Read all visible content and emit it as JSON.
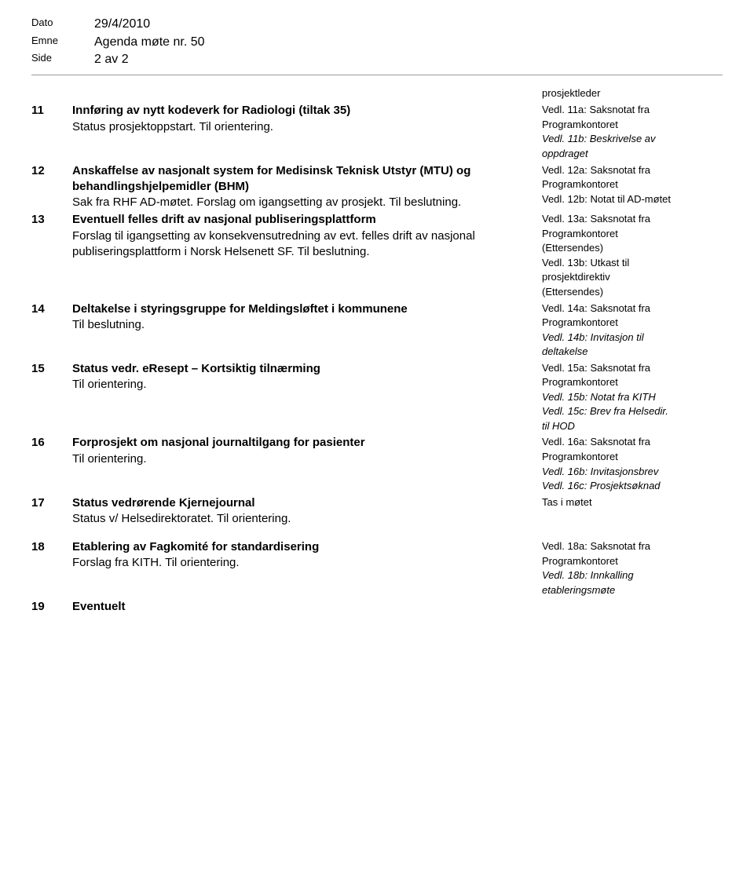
{
  "header": {
    "dato_label": "Dato",
    "dato_value": "29/4/2010",
    "emne_label": "Emne",
    "emne_value": "Agenda møte nr. 50",
    "side_label": "Side",
    "side_value": "2 av 2"
  },
  "topnote": "prosjektleder",
  "items": [
    {
      "num": "11",
      "title": "Innføring av nytt kodeverk for Radiologi (tiltak 35)",
      "body": "Status prosjektoppstart. Til orientering.",
      "notes": [
        {
          "text": "Vedl. 11a: Saksnotat fra",
          "italic": false
        },
        {
          "text": "Programkontoret",
          "italic": false
        },
        {
          "text": "Vedl. 11b: Beskrivelse av",
          "italic": true
        },
        {
          "text": "oppdraget",
          "italic": true
        }
      ]
    },
    {
      "num": "12",
      "title": "Anskaffelse av nasjonalt system for Medisinsk Teknisk Utstyr (MTU) og behandlingshjelpemidler (BHM)",
      "body": "Sak fra RHF AD-møtet. Forslag om igangsetting av prosjekt. Til beslutning.",
      "notes": [
        {
          "text": "Vedl. 12a: Saksnotat fra",
          "italic": false
        },
        {
          "text": "Programkontoret",
          "italic": false
        },
        {
          "text": "Vedl. 12b: Notat til AD-møtet",
          "italic": false
        }
      ]
    },
    {
      "num": "13",
      "title": "Eventuell felles drift av nasjonal publiseringsplattform",
      "body": "Forslag til igangsetting av konsekvensutredning av evt. felles drift av nasjonal publiseringsplattform i Norsk Helsenett SF. Til beslutning.",
      "notes": [
        {
          "text": "Vedl. 13a: Saksnotat fra",
          "italic": false
        },
        {
          "text": "Programkontoret",
          "italic": false
        },
        {
          "text": "(Ettersendes)",
          "italic": false
        },
        {
          "text": "Vedl. 13b: Utkast til",
          "italic": false
        },
        {
          "text": "prosjektdirektiv",
          "italic": false
        },
        {
          "text": "(Ettersendes)",
          "italic": false
        }
      ]
    },
    {
      "num": "14",
      "title": "Deltakelse i styringsgruppe for Meldingsløftet i kommunene",
      "body": "Til beslutning.",
      "notes": [
        {
          "text": "Vedl. 14a: Saksnotat fra",
          "italic": false
        },
        {
          "text": "Programkontoret",
          "italic": false
        },
        {
          "text": "Vedl. 14b: Invitasjon til",
          "italic": true
        },
        {
          "text": "deltakelse",
          "italic": true
        }
      ]
    },
    {
      "num": "15",
      "title": "Status vedr. eResept – Kortsiktig tilnærming",
      "body": "Til orientering.",
      "notes": [
        {
          "text": "Vedl. 15a: Saksnotat fra",
          "italic": false
        },
        {
          "text": "Programkontoret",
          "italic": false
        },
        {
          "text": "Vedl. 15b: Notat fra KITH",
          "italic": true
        },
        {
          "text": "Vedl. 15c: Brev fra Helsedir.",
          "italic": true
        },
        {
          "text": "til HOD",
          "italic": true
        }
      ]
    },
    {
      "num": "16",
      "title": "Forprosjekt om nasjonal journaltilgang for pasienter",
      "body": "Til orientering.",
      "notes": [
        {
          "text": "Vedl. 16a: Saksnotat fra",
          "italic": false
        },
        {
          "text": "Programkontoret",
          "italic": false
        },
        {
          "text": "Vedl. 16b: Invitasjonsbrev",
          "italic": true
        },
        {
          "text": "Vedl. 16c: Prosjektsøknad",
          "italic": true
        }
      ]
    },
    {
      "num": "17",
      "title": "Status vedrørende Kjernejournal",
      "body": "Status v/ Helsedirektoratet. Til orientering.",
      "notes": [
        {
          "text": "Tas i møtet",
          "italic": false
        }
      ]
    },
    {
      "num": "18",
      "title": "Etablering av Fagkomité for standardisering",
      "body": "Forslag fra KITH. Til orientering.",
      "notes": [
        {
          "text": "Vedl. 18a: Saksnotat fra",
          "italic": false
        },
        {
          "text": "Programkontoret",
          "italic": false
        },
        {
          "text": "Vedl. 18b: Innkalling",
          "italic": true
        },
        {
          "text": "etableringsmøte",
          "italic": true
        }
      ]
    },
    {
      "num": "19",
      "title": "Eventuelt",
      "body": "",
      "notes": []
    }
  ]
}
